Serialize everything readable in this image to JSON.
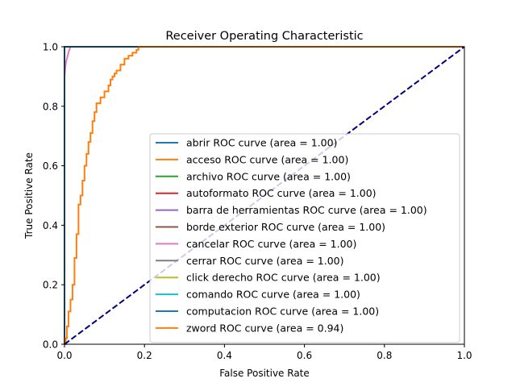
{
  "chart_data": {
    "type": "line",
    "title": "Receiver Operating Characteristic",
    "xlabel": "False Positive Rate",
    "ylabel": "True Positive Rate",
    "xlim": [
      0.0,
      1.0
    ],
    "ylim": [
      0.0,
      1.0
    ],
    "xticks": [
      "0.0",
      "0.2",
      "0.4",
      "0.6",
      "0.8",
      "1.0"
    ],
    "yticks": [
      "0.0",
      "0.2",
      "0.4",
      "0.6",
      "0.8",
      "1.0"
    ],
    "grid": false,
    "legend_position": "lower right",
    "series": [
      {
        "name": "abrir ROC curve (area = 1.00)",
        "color": "#1f77b4",
        "x": [
          0,
          0,
          1
        ],
        "y": [
          0,
          1,
          1
        ]
      },
      {
        "name": "acceso ROC curve (area = 1.00)",
        "color": "#ff7f0e",
        "x": [
          0,
          0,
          1
        ],
        "y": [
          0,
          1,
          1
        ]
      },
      {
        "name": "archivo ROC curve (area = 1.00)",
        "color": "#2ca02c",
        "x": [
          0,
          0,
          1
        ],
        "y": [
          0,
          1,
          1
        ]
      },
      {
        "name": "autoformato ROC curve (area = 1.00)",
        "color": "#d62728",
        "x": [
          0,
          0,
          1
        ],
        "y": [
          0,
          1,
          1
        ]
      },
      {
        "name": "barra de herramientas ROC curve (area = 1.00)",
        "color": "#9467bd",
        "x": [
          0,
          0,
          1
        ],
        "y": [
          0,
          1,
          1
        ]
      },
      {
        "name": "borde exterior ROC curve (area = 1.00)",
        "color": "#8c564b",
        "x": [
          0,
          0,
          1
        ],
        "y": [
          0,
          1,
          1
        ]
      },
      {
        "name": "cancelar ROC curve (area = 1.00)",
        "color": "#e377c2",
        "x": [
          0,
          0,
          0.002,
          0.004,
          0.006,
          0.008,
          0.01,
          0.012,
          0.015,
          1
        ],
        "y": [
          0,
          0.9,
          0.93,
          0.95,
          0.96,
          0.97,
          0.98,
          0.99,
          1,
          1
        ]
      },
      {
        "name": "cerrar ROC curve (area = 1.00)",
        "color": "#7f7f7f",
        "x": [
          0,
          0,
          1
        ],
        "y": [
          0,
          1,
          1
        ]
      },
      {
        "name": "click derecho ROC curve (area = 1.00)",
        "color": "#bcbd22",
        "x": [
          0,
          0,
          1
        ],
        "y": [
          0,
          1,
          1
        ]
      },
      {
        "name": "comando ROC curve (area = 1.00)",
        "color": "#17becf",
        "x": [
          0,
          0,
          1
        ],
        "y": [
          0,
          1,
          1
        ]
      },
      {
        "name": "computacion ROC curve (area = 1.00)",
        "color": "#1f77b4",
        "x": [
          0,
          0,
          1
        ],
        "y": [
          0,
          1,
          1
        ]
      },
      {
        "name": "zword ROC curve (area = 0.94)",
        "color": "#ff7f0e",
        "x": [
          0,
          0.003,
          0.003,
          0.006,
          0.006,
          0.01,
          0.01,
          0.015,
          0.015,
          0.02,
          0.02,
          0.025,
          0.025,
          0.03,
          0.03,
          0.035,
          0.035,
          0.04,
          0.04,
          0.045,
          0.045,
          0.05,
          0.05,
          0.055,
          0.055,
          0.06,
          0.06,
          0.065,
          0.065,
          0.07,
          0.07,
          0.075,
          0.075,
          0.08,
          0.08,
          0.09,
          0.09,
          0.1,
          0.1,
          0.11,
          0.11,
          0.115,
          0.115,
          0.12,
          0.12,
          0.125,
          0.125,
          0.13,
          0.13,
          0.14,
          0.14,
          0.15,
          0.15,
          0.16,
          0.16,
          0.17,
          0.17,
          0.18,
          0.18,
          0.185,
          0.185,
          0.21,
          1.0
        ],
        "y": [
          0,
          0,
          0.02,
          0.02,
          0.06,
          0.06,
          0.11,
          0.11,
          0.15,
          0.15,
          0.2,
          0.2,
          0.29,
          0.29,
          0.37,
          0.37,
          0.47,
          0.47,
          0.5,
          0.5,
          0.55,
          0.55,
          0.6,
          0.6,
          0.64,
          0.64,
          0.68,
          0.68,
          0.71,
          0.71,
          0.75,
          0.75,
          0.78,
          0.78,
          0.81,
          0.81,
          0.83,
          0.83,
          0.85,
          0.85,
          0.87,
          0.87,
          0.89,
          0.89,
          0.9,
          0.9,
          0.91,
          0.91,
          0.92,
          0.92,
          0.94,
          0.94,
          0.96,
          0.96,
          0.97,
          0.97,
          0.98,
          0.98,
          0.99,
          0.99,
          1.0,
          1.0,
          1.0
        ]
      },
      {
        "name": "",
        "color": "#000080",
        "dashed": true,
        "x": [
          0,
          1
        ],
        "y": [
          0,
          1
        ]
      }
    ]
  }
}
